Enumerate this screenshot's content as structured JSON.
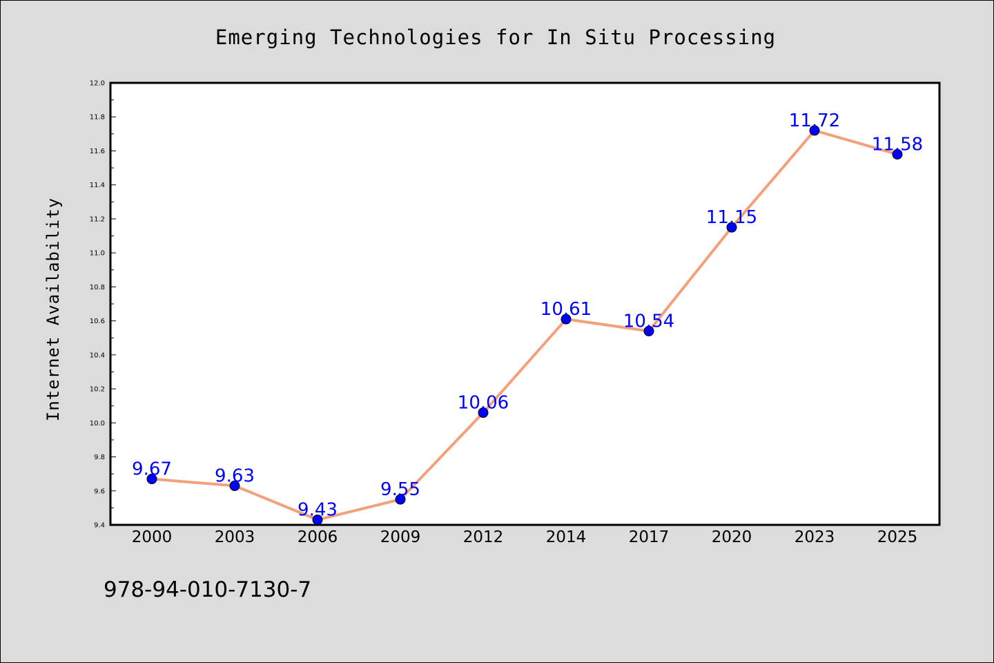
{
  "chart_data": {
    "type": "line",
    "title": "Emerging Technologies for In Situ Processing",
    "xlabel": "",
    "ylabel": "Internet Availability",
    "categories": [
      "2000",
      "2003",
      "2006",
      "2009",
      "2012",
      "2014",
      "2017",
      "2020",
      "2023",
      "2025"
    ],
    "series": [
      {
        "values": [
          9.67,
          9.63,
          9.43,
          9.55,
          10.06,
          10.61,
          10.54,
          11.15,
          11.72,
          11.58
        ]
      }
    ],
    "data_labels": [
      "9.67",
      "9.63",
      "9.43",
      "9.55",
      "10.06",
      "10.61",
      "10.54",
      "11.15",
      "11.72",
      "11.58"
    ],
    "ylim": [
      9.4,
      12.0
    ],
    "yticks": [
      "9.4",
      "9.6",
      "9.8",
      "10.0",
      "10.2",
      "10.4",
      "10.6",
      "10.8",
      "11.0",
      "11.2",
      "11.4",
      "11.6",
      "11.8",
      "12.0"
    ],
    "grid": false,
    "legend": "none",
    "colors": {
      "line": "#f4a07a",
      "marker": "#0000ff",
      "label": "#0000ff",
      "background": "#dcdcdc",
      "plot_background": "#ffffff"
    }
  },
  "footer_code": "978-94-010-7130-7"
}
